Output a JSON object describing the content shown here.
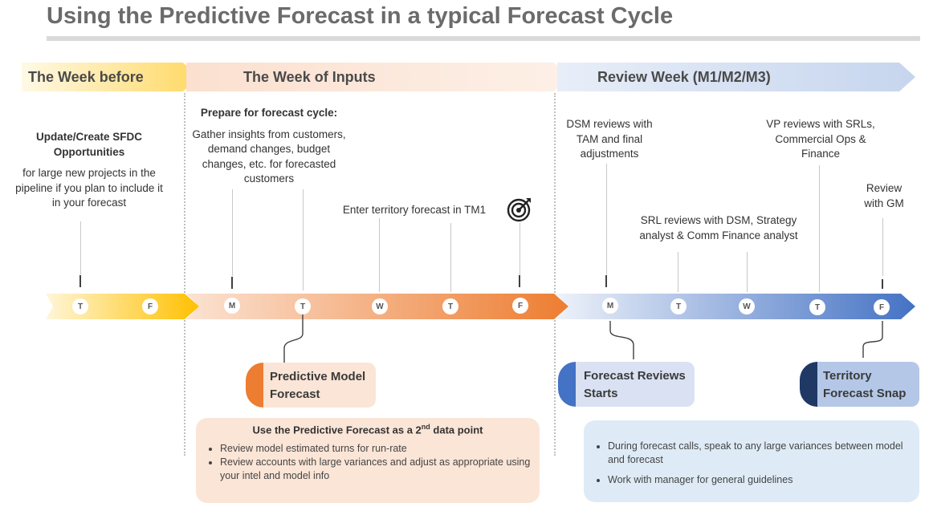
{
  "title": "Using the Predictive Forecast in a typical Forecast Cycle",
  "phases": [
    {
      "label": "The Week before"
    },
    {
      "label": "The Week of Inputs"
    },
    {
      "label": "Review Week (M1/M2/M3)"
    }
  ],
  "notes": {
    "sfdc_title": "Update/Create SFDC Opportunities",
    "sfdc_body": "for large new projects in the pipeline if you plan to include it in your forecast",
    "prepare_title": "Prepare for forecast cycle:",
    "prepare_body": "Gather insights from customers, demand changes, budget changes, etc. for forecasted customers",
    "enter_tm1": "Enter territory forecast in TM1",
    "dsm_review": "DSM reviews with TAM and final adjustments",
    "srl_review": "SRL reviews with DSM, Strategy analyst & Comm Finance analyst",
    "vp_review": "VP reviews with SRLs, Commercial Ops & Finance",
    "gm_review": "Review with GM"
  },
  "days": {
    "week_before": [
      "T",
      "F"
    ],
    "week_inputs": [
      "M",
      "T",
      "W",
      "T",
      "F"
    ],
    "review_week": [
      "M",
      "T",
      "W",
      "T",
      "F"
    ]
  },
  "milestones": {
    "predictive": "Predictive Model Forecast",
    "reviews": "Forecast Reviews Starts",
    "snap": "Territory Forecast Snap"
  },
  "panels": {
    "left": {
      "title_main": "Use the Predictive Forecast as a 2",
      "title_sup": "nd",
      "title_end": " data point",
      "bullets": [
        "Review model estimated turns for run-rate",
        "Review accounts with large variances and adjust as appropriate using your intel and model info"
      ]
    },
    "right": {
      "bullets": [
        "During forecast calls, speak to any large variances between model and forecast",
        "Work with manager for general guidelines"
      ]
    }
  },
  "icons": {
    "target": "target-icon"
  },
  "colors": {
    "week_before": "#ffc000",
    "week_inputs": "#ed7d31",
    "review_week": "#4472c4"
  }
}
